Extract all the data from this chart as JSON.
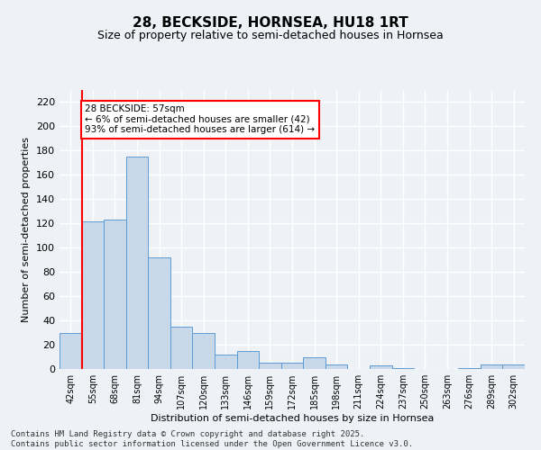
{
  "title": "28, BECKSIDE, HORNSEA, HU18 1RT",
  "subtitle": "Size of property relative to semi-detached houses in Hornsea",
  "xlabel": "Distribution of semi-detached houses by size in Hornsea",
  "ylabel": "Number of semi-detached properties",
  "categories": [
    "42sqm",
    "55sqm",
    "68sqm",
    "81sqm",
    "94sqm",
    "107sqm",
    "120sqm",
    "133sqm",
    "146sqm",
    "159sqm",
    "172sqm",
    "185sqm",
    "198sqm",
    "211sqm",
    "224sqm",
    "237sqm",
    "250sqm",
    "263sqm",
    "276sqm",
    "289sqm",
    "302sqm"
  ],
  "values": [
    30,
    122,
    123,
    175,
    92,
    35,
    30,
    12,
    15,
    5,
    5,
    10,
    4,
    0,
    3,
    1,
    0,
    0,
    1,
    4,
    4
  ],
  "bar_color": "#c8d8e8",
  "bar_edge_color": "#5b9bd5",
  "vline_color": "red",
  "vline_x_index": 1,
  "annotation_text": "28 BECKSIDE: 57sqm\n← 6% of semi-detached houses are smaller (42)\n93% of semi-detached houses are larger (614) →",
  "annotation_box_color": "white",
  "annotation_box_edge": "red",
  "ylim": [
    0,
    230
  ],
  "yticks": [
    0,
    20,
    40,
    60,
    80,
    100,
    120,
    140,
    160,
    180,
    200,
    220
  ],
  "background_color": "#eef2f7",
  "grid_color": "white",
  "footer": "Contains HM Land Registry data © Crown copyright and database right 2025.\nContains public sector information licensed under the Open Government Licence v3.0.",
  "title_fontsize": 11,
  "subtitle_fontsize": 9,
  "annotation_fontsize": 7.5,
  "axis_fontsize": 8,
  "tick_fontsize": 7,
  "footer_fontsize": 6.5
}
